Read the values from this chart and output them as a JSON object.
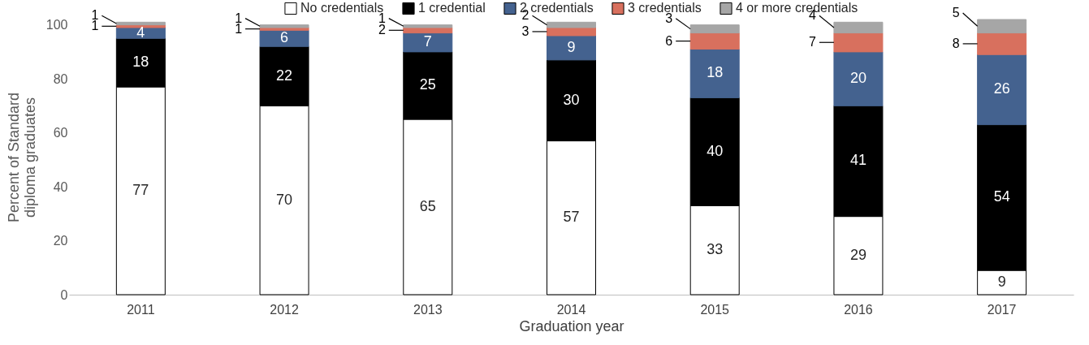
{
  "chart_data": {
    "type": "bar",
    "stacked": true,
    "xlabel": "Graduation year",
    "ylabel": "Percent of Standard diploma graduates",
    "categories": [
      "2011",
      "2012",
      "2013",
      "2014",
      "2015",
      "2016",
      "2017"
    ],
    "series": [
      {
        "name": "No credentials",
        "color": "#ffffff",
        "values": [
          77,
          70,
          65,
          57,
          33,
          29,
          9
        ]
      },
      {
        "name": "1 credential",
        "color": "#000000",
        "values": [
          18,
          22,
          25,
          30,
          40,
          41,
          54
        ]
      },
      {
        "name": "2 credentials",
        "color": "#44628f",
        "values": [
          4,
          6,
          7,
          9,
          18,
          20,
          26
        ]
      },
      {
        "name": "3 credentials",
        "color": "#d8705e",
        "values": [
          1,
          1,
          2,
          3,
          6,
          7,
          8
        ]
      },
      {
        "name": "4 or more credentials",
        "color": "#a6a6a6",
        "values": [
          1,
          1,
          1,
          2,
          3,
          4,
          5
        ]
      }
    ],
    "ylim": [
      0,
      102
    ],
    "yticks": [
      0,
      20,
      40,
      60,
      80,
      100
    ],
    "grid": false,
    "legend": "top",
    "data_labels": true
  }
}
